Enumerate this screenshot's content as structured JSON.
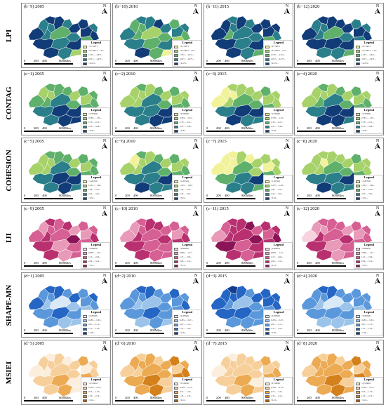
{
  "rows": [
    {
      "label": "LPI",
      "ramp": [
        "#f2f29a",
        "#a7d26a",
        "#5fb06b",
        "#2a7f8a",
        "#123c78"
      ],
      "legend_entries": [
        "<0.770871",
        "<0.770871 - 1.53...",
        "1.537... - 2.617...",
        "2.617... - 4.473...",
        ">4.473..."
      ],
      "panels": [
        {
          "title": "(b−9) 2005"
        },
        {
          "title": "(b−10) 2010"
        },
        {
          "title": "(b−11) 2015"
        },
        {
          "title": "(b−12) 2020"
        }
      ]
    },
    {
      "label": "CONTAG",
      "ramp": [
        "#f2f29a",
        "#a7d26a",
        "#5fb06b",
        "#2a7f8a",
        "#123c78"
      ],
      "legend_entries": [
        "<0.783660",
        "0.783... - 1.35...",
        "1.35... - 2.21...",
        "2.21... - 3.46...",
        ">3.46..."
      ],
      "panels": [
        {
          "title": "(c−1) 2005"
        },
        {
          "title": "(c−2) 2010"
        },
        {
          "title": "(c−3) 2015"
        },
        {
          "title": "(c−4) 2020"
        }
      ]
    },
    {
      "label": "COHESION",
      "ramp": [
        "#f2f29a",
        "#a7d26a",
        "#5fb06b",
        "#2a7f8a",
        "#123c78"
      ],
      "legend_entries": [
        "<1.207645",
        "1.207... - 1.69...",
        "1.69... - 2.23...",
        "2.23... - 3.01...",
        ">3.01..."
      ],
      "panels": [
        {
          "title": "(c−5) 2005"
        },
        {
          "title": "(c−6) 2010"
        },
        {
          "title": "(c−7) 2015"
        },
        {
          "title": "(c−8) 2020"
        }
      ]
    },
    {
      "label": "IJI",
      "ramp": [
        "#f7d3df",
        "#e89ab8",
        "#d65f93",
        "#b8306f",
        "#8a1456"
      ],
      "legend_entries": [
        "<0.606045",
        "0.606... - 1.27...",
        "1.27... - 2.04...",
        "2.04... - 3.12...",
        ">3.12..."
      ],
      "panels": [
        {
          "title": "(c−9) 2005"
        },
        {
          "title": "(c−10) 2010"
        },
        {
          "title": "(c−11) 2015"
        },
        {
          "title": "(c−12) 2020"
        }
      ]
    },
    {
      "label": "SHAPE-MN",
      "ramp": [
        "#d9e9f7",
        "#9cc4ea",
        "#5a98db",
        "#2565c4",
        "#123c8f"
      ],
      "legend_entries": [
        "<0.285905",
        "0.285... - 0.67...",
        "0.67... - 1.21...",
        "1.21... - 1.95...",
        ">1.95..."
      ],
      "panels": [
        {
          "title": "(d−1) 2005"
        },
        {
          "title": "(d−2) 2010"
        },
        {
          "title": "(d−3) 2015"
        },
        {
          "title": "(d−4) 2020"
        }
      ]
    },
    {
      "label": "MSIEI",
      "ramp": [
        "#fbeedd",
        "#f6cf9a",
        "#ecaa52",
        "#d4811c",
        "#a85a0c"
      ],
      "legend_entries": [
        "<0.316062",
        "0.316... - 0.74...",
        "0.74... - 1.33...",
        "1.33... - 2.10...",
        ">2.10..."
      ],
      "panels": [
        {
          "title": "(d−5) 2005"
        },
        {
          "title": "(d−6) 2010"
        },
        {
          "title": "(d−7) 2015"
        },
        {
          "title": "(d−8) 2020"
        }
      ]
    }
  ],
  "legend_title": "Legend",
  "north_label": "N",
  "scale": {
    "ticks": [
      "0",
      "200",
      "400",
      "800Miles"
    ]
  },
  "region_class_indices": [
    [
      [
        4,
        3,
        4,
        3,
        4,
        3,
        4,
        4,
        3,
        2,
        3,
        4,
        3,
        4,
        2,
        4,
        3,
        4,
        4,
        3,
        1
      ],
      [
        3,
        2,
        3,
        2,
        3,
        4,
        3,
        2,
        2,
        1,
        2,
        3,
        3,
        2,
        1,
        3,
        2,
        3,
        4,
        2,
        0
      ],
      [
        4,
        4,
        3,
        3,
        4,
        3,
        4,
        4,
        2,
        3,
        3,
        4,
        4,
        3,
        2,
        4,
        3,
        4,
        4,
        3,
        2
      ],
      [
        4,
        3,
        4,
        3,
        4,
        4,
        4,
        3,
        3,
        2,
        3,
        4,
        3,
        4,
        3,
        4,
        4,
        4,
        3,
        3,
        2
      ]
    ],
    [
      [
        2,
        1,
        2,
        1,
        2,
        2,
        1,
        2,
        2,
        3,
        2,
        1,
        2,
        2,
        2,
        3,
        4,
        4,
        3,
        4,
        4
      ],
      [
        1,
        1,
        2,
        1,
        1,
        2,
        1,
        2,
        1,
        3,
        2,
        1,
        1,
        2,
        2,
        3,
        3,
        4,
        3,
        4,
        4
      ],
      [
        0,
        0,
        1,
        0,
        1,
        1,
        1,
        2,
        1,
        2,
        2,
        1,
        1,
        1,
        2,
        3,
        4,
        4,
        4,
        3,
        3
      ],
      [
        1,
        1,
        2,
        1,
        1,
        2,
        1,
        2,
        2,
        3,
        2,
        1,
        1,
        2,
        2,
        3,
        4,
        4,
        4,
        4,
        3
      ]
    ],
    [
      [
        1,
        1,
        2,
        1,
        2,
        2,
        1,
        2,
        1,
        3,
        2,
        1,
        2,
        2,
        2,
        3,
        4,
        4,
        3,
        4,
        3
      ],
      [
        1,
        0,
        2,
        1,
        1,
        2,
        1,
        2,
        1,
        3,
        2,
        1,
        1,
        2,
        2,
        3,
        3,
        4,
        4,
        3,
        3
      ],
      [
        0,
        0,
        0,
        0,
        1,
        0,
        1,
        1,
        0,
        2,
        1,
        0,
        1,
        1,
        2,
        2,
        3,
        4,
        3,
        3,
        2
      ],
      [
        1,
        1,
        1,
        0,
        1,
        1,
        1,
        2,
        1,
        2,
        2,
        1,
        1,
        1,
        2,
        3,
        3,
        4,
        4,
        3,
        3
      ]
    ],
    [
      [
        2,
        1,
        3,
        2,
        2,
        3,
        1,
        2,
        3,
        2,
        4,
        1,
        2,
        3,
        2,
        3,
        1,
        2,
        3,
        1,
        2
      ],
      [
        1,
        1,
        2,
        2,
        3,
        3,
        2,
        2,
        3,
        2,
        3,
        1,
        2,
        3,
        3,
        3,
        2,
        2,
        3,
        2,
        2
      ],
      [
        1,
        2,
        3,
        3,
        3,
        4,
        2,
        3,
        3,
        3,
        4,
        2,
        3,
        4,
        3,
        4,
        2,
        3,
        3,
        2,
        3
      ],
      [
        0,
        1,
        2,
        1,
        2,
        2,
        1,
        2,
        3,
        2,
        3,
        1,
        2,
        2,
        2,
        3,
        1,
        2,
        3,
        1,
        2
      ]
    ],
    [
      [
        3,
        2,
        3,
        2,
        3,
        2,
        3,
        2,
        1,
        0,
        1,
        2,
        3,
        2,
        1,
        2,
        3,
        2,
        2,
        1,
        1
      ],
      [
        2,
        2,
        3,
        2,
        3,
        2,
        2,
        3,
        1,
        1,
        2,
        2,
        2,
        3,
        2,
        2,
        3,
        2,
        1,
        2,
        1
      ],
      [
        3,
        3,
        4,
        3,
        3,
        2,
        3,
        3,
        2,
        1,
        2,
        3,
        3,
        3,
        2,
        3,
        3,
        2,
        2,
        2,
        2
      ],
      [
        2,
        2,
        3,
        2,
        3,
        2,
        2,
        2,
        1,
        0,
        1,
        2,
        2,
        2,
        1,
        2,
        2,
        2,
        1,
        1,
        1
      ]
    ],
    [
      [
        0,
        1,
        0,
        1,
        1,
        0,
        1,
        2,
        0,
        1,
        1,
        0,
        1,
        1,
        2,
        1,
        2,
        0,
        1,
        2,
        0
      ],
      [
        1,
        2,
        1,
        2,
        2,
        1,
        2,
        3,
        1,
        2,
        2,
        1,
        2,
        3,
        3,
        2,
        3,
        1,
        2,
        3,
        1
      ],
      [
        0,
        1,
        0,
        1,
        1,
        1,
        1,
        2,
        1,
        1,
        1,
        1,
        1,
        2,
        2,
        1,
        2,
        0,
        1,
        2,
        1
      ],
      [
        1,
        2,
        1,
        2,
        2,
        1,
        2,
        3,
        2,
        2,
        2,
        1,
        2,
        2,
        3,
        2,
        3,
        1,
        2,
        3,
        2
      ]
    ]
  ]
}
